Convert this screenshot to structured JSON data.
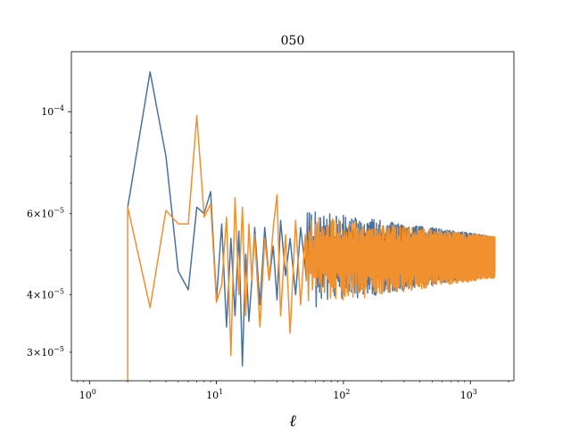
{
  "chart_data": {
    "type": "line",
    "title": "050",
    "xlabel": "ℓ",
    "ylabel": "",
    "xscale": "log",
    "yscale": "log",
    "xlim": [
      0.72,
      2200
    ],
    "ylim": [
      2.6e-05,
      0.000135
    ],
    "grid": false,
    "x_ticks": [
      {
        "value": 1,
        "base": "10",
        "exp": "0"
      },
      {
        "value": 10,
        "base": "10",
        "exp": "1"
      },
      {
        "value": 100,
        "base": "10",
        "exp": "2"
      },
      {
        "value": 1000,
        "base": "10",
        "exp": "3"
      }
    ],
    "y_ticks": [
      {
        "value": 0.0001,
        "mant": "",
        "base": "10",
        "exp": "−4"
      },
      {
        "value": 6e-05,
        "mant": "6×",
        "base": "10",
        "exp": "−5"
      },
      {
        "value": 4e-05,
        "mant": "4×",
        "base": "10",
        "exp": "−5"
      },
      {
        "value": 3e-05,
        "mant": "3×",
        "base": "10",
        "exp": "−5"
      }
    ],
    "series": [
      {
        "color": "#4a72a0",
        "x": [
          2,
          3,
          4,
          5,
          6,
          7,
          8,
          9,
          10,
          11,
          12,
          13,
          14,
          15,
          16,
          17,
          18,
          19,
          20,
          22,
          24,
          26,
          28,
          30,
          32,
          35,
          38,
          42,
          46,
          50
        ],
        "y": [
          6.2e-05,
          0.000122,
          8e-05,
          4.5e-05,
          4.1e-05,
          6.2e-05,
          6e-05,
          6.7e-05,
          3.9e-05,
          5.7e-05,
          3.4e-05,
          5.3e-05,
          3.6e-05,
          5.5e-05,
          2.8e-05,
          4.9e-05,
          3.5e-05,
          4.3e-05,
          5.6e-05,
          3.8e-05,
          5.6e-05,
          4.3e-05,
          5.1e-05,
          3.9e-05,
          5.8e-05,
          4.4e-05,
          5.3e-05,
          4e-05,
          5.6e-05,
          4.6e-05
        ],
        "noise_from": 50,
        "noise_to": 1560,
        "noise_center": 4.9e-05,
        "noise_spread_start": 1.2e-05,
        "noise_spread_end": 4.5e-06,
        "seed": 7
      },
      {
        "color": "#f0902e",
        "x": [
          2,
          2,
          3,
          4,
          5,
          6,
          7,
          8,
          9,
          10,
          11,
          12,
          13,
          14,
          15,
          16,
          17,
          18,
          19,
          20,
          22,
          24,
          26,
          28,
          30,
          32,
          35,
          38,
          42,
          46,
          50
        ],
        "y": [
          2.6e-05,
          6.2e-05,
          3.75e-05,
          6.1e-05,
          5.7e-05,
          5.7e-05,
          9.8e-05,
          5.9e-05,
          6.3e-05,
          3.85e-05,
          4.2e-05,
          5.9e-05,
          2.95e-05,
          6.5e-05,
          4e-05,
          6.2e-05,
          3.6e-05,
          5.7e-05,
          4.3e-05,
          5.4e-05,
          3.4e-05,
          5.3e-05,
          4.3e-05,
          5.6e-05,
          6.6e-05,
          3.6e-05,
          5.4e-05,
          3.3e-05,
          5.8e-05,
          3.8e-05,
          5.4e-05
        ],
        "noise_from": 50,
        "noise_to": 1560,
        "noise_center": 4.85e-05,
        "noise_spread_start": 1.1e-05,
        "noise_spread_end": 5e-06,
        "seed": 19
      }
    ]
  }
}
